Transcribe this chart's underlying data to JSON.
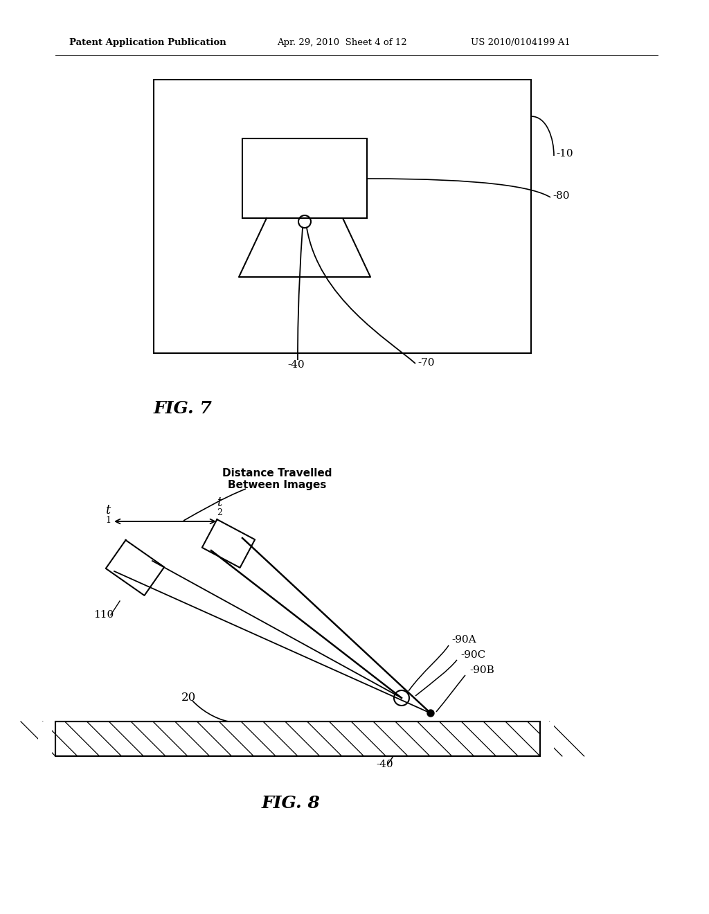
{
  "bg_color": "#ffffff",
  "header_left": "Patent Application Publication",
  "header_mid": "Apr. 29, 2010  Sheet 4 of 12",
  "header_right": "US 2010/0104199 A1",
  "fig7_label": "FIG. 7",
  "fig8_label": "FIG. 8",
  "label_10": "-10",
  "label_80": "-80",
  "label_40_fig7": "-40",
  "label_70": "-70",
  "label_110": "110",
  "label_20": "20",
  "label_40_fig8": "-40",
  "label_90A": "-90A",
  "label_90B": "-90B",
  "label_90C": "-90C",
  "label_t1": "t",
  "label_t2": "t",
  "dist_label": "Distance Travelled\nBetween Images"
}
